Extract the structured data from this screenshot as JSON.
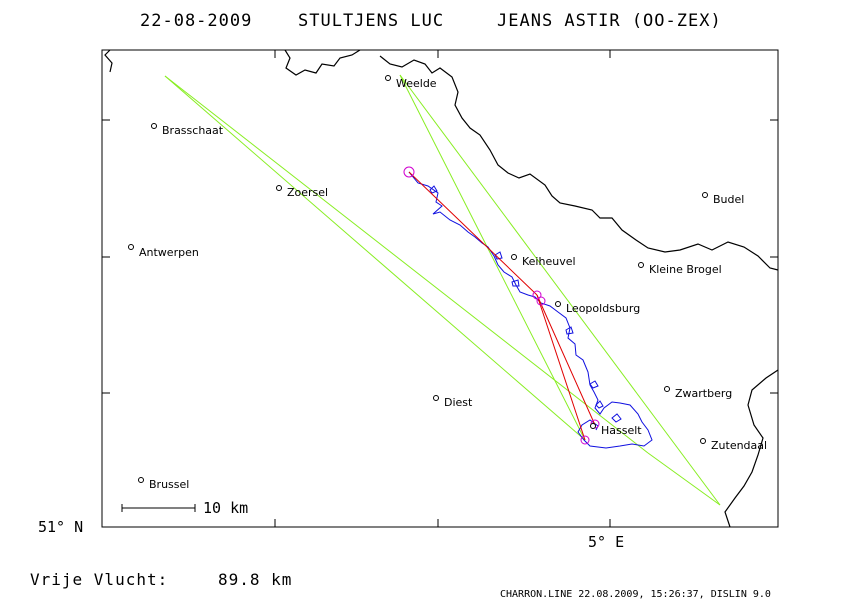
{
  "header": {
    "date": "22-08-2009",
    "pilot": "STULTJENS LUC",
    "glider": "JEANS ASTIR (OO-ZEX)"
  },
  "cities": [
    {
      "name": "Weelde",
      "label": "Weelde"
    },
    {
      "name": "Brasschaat",
      "label": "Brasschaat"
    },
    {
      "name": "Zoersel",
      "label": "Zoersel"
    },
    {
      "name": "Budel",
      "label": "Budel"
    },
    {
      "name": "Antwerpen",
      "label": "Antwerpen"
    },
    {
      "name": "Keiheuvel",
      "label": "Keiheuvel"
    },
    {
      "name": "Kleine Brogel",
      "label": "Kleine Brogel"
    },
    {
      "name": "Leopoldsburg",
      "label": "Leopoldsburg"
    },
    {
      "name": "Zwartberg",
      "label": "Zwartberg"
    },
    {
      "name": "Diest",
      "label": "Diest"
    },
    {
      "name": "Hasselt",
      "label": "Hasselt"
    },
    {
      "name": "Zutendaal",
      "label": "Zutendaal"
    },
    {
      "name": "Brussel",
      "label": "Brussel"
    }
  ],
  "axes": {
    "lat_label": "51° N",
    "lon_label": "5° E"
  },
  "scale": {
    "label": "10 km"
  },
  "footer": {
    "distance_label": "Vrije Vlucht:",
    "distance_value": "89.8 km",
    "stamp": "CHARRON.LINE 22.08.2009, 15:26:37, DISLIN 9.0"
  },
  "colors": {
    "track": "#1010e0",
    "task_line": "#e00000",
    "sector": "#88ee22",
    "turnpoint": "#d000d0",
    "border": "#000000"
  }
}
